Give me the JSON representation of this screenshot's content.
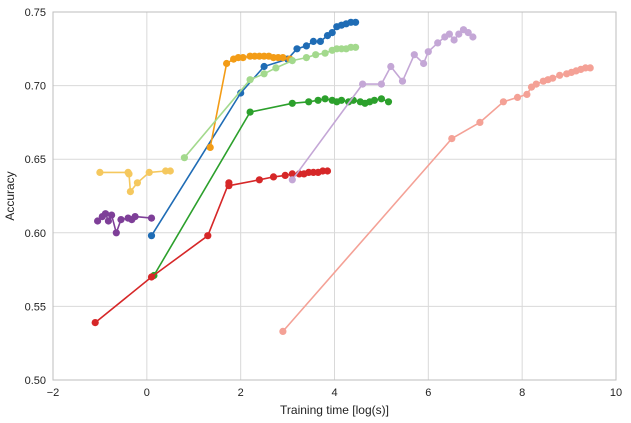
{
  "chart_data": {
    "type": "line",
    "xlabel": "Training time [log(s)]",
    "ylabel": "Accuracy",
    "xlim": [
      -2,
      10
    ],
    "ylim": [
      0.5,
      0.75
    ],
    "xticks": [
      -2,
      0,
      2,
      4,
      6,
      8,
      10
    ],
    "xtick_labels": [
      "−2",
      "0",
      "2",
      "4",
      "6",
      "8",
      "10"
    ],
    "yticks": [
      0.5,
      0.55,
      0.6,
      0.65,
      0.7,
      0.75
    ],
    "ytick_labels": [
      "0.50",
      "0.55",
      "0.60",
      "0.65",
      "0.70",
      "0.75"
    ],
    "grid": true,
    "legend": false,
    "series": [
      {
        "color": "#7e3f98",
        "x": [
          -1.05,
          -0.95,
          -0.88,
          -0.82,
          -0.75,
          -0.65,
          -0.55,
          -0.4,
          -0.32,
          -0.25,
          0.1
        ],
        "y": [
          0.608,
          0.611,
          0.613,
          0.608,
          0.612,
          0.6,
          0.609,
          0.61,
          0.609,
          0.611,
          0.61
        ]
      },
      {
        "color": "#f5c85e",
        "x": [
          -1.0,
          -0.4,
          -0.38,
          -0.35,
          -0.2,
          0.05,
          0.4,
          0.5
        ],
        "y": [
          0.641,
          0.641,
          0.64,
          0.628,
          0.634,
          0.641,
          0.642,
          0.642
        ]
      },
      {
        "color": "#1f6cb5",
        "x": [
          0.1,
          2.0,
          2.5,
          3.0,
          3.2,
          3.4,
          3.55,
          3.7,
          3.85,
          3.95,
          4.05,
          4.15,
          4.25,
          4.35,
          4.45
        ],
        "y": [
          0.598,
          0.695,
          0.713,
          0.718,
          0.725,
          0.727,
          0.73,
          0.73,
          0.734,
          0.736,
          0.74,
          0.741,
          0.742,
          0.743,
          0.743
        ]
      },
      {
        "color": "#f39c16",
        "x": [
          1.35,
          1.7,
          1.85,
          1.95,
          2.05,
          2.2,
          2.3,
          2.4,
          2.5,
          2.6,
          2.7,
          2.8,
          2.9,
          3.05
        ],
        "y": [
          0.658,
          0.715,
          0.718,
          0.719,
          0.719,
          0.72,
          0.72,
          0.72,
          0.72,
          0.72,
          0.719,
          0.719,
          0.719,
          0.718
        ]
      },
      {
        "color": "#a3d98d",
        "x": [
          0.8,
          2.2,
          2.5,
          2.75,
          3.1,
          3.4,
          3.6,
          3.8,
          3.95,
          4.05,
          4.15,
          4.25,
          4.35,
          4.45
        ],
        "y": [
          0.651,
          0.704,
          0.708,
          0.712,
          0.717,
          0.719,
          0.721,
          0.722,
          0.724,
          0.725,
          0.725,
          0.725,
          0.726,
          0.726
        ]
      },
      {
        "color": "#2ca02c",
        "x": [
          0.15,
          2.2,
          3.1,
          3.45,
          3.65,
          3.8,
          3.95,
          4.05,
          4.15,
          4.3,
          4.4,
          4.55,
          4.65,
          4.75,
          4.85,
          5.0,
          5.15
        ],
        "y": [
          0.571,
          0.682,
          0.688,
          0.689,
          0.69,
          0.691,
          0.69,
          0.689,
          0.69,
          0.689,
          0.69,
          0.689,
          0.688,
          0.689,
          0.69,
          0.691,
          0.689
        ]
      },
      {
        "color": "#d62728",
        "x": [
          -1.1,
          0.1,
          1.3,
          1.75,
          1.75,
          2.4,
          2.7,
          2.95,
          3.1,
          3.25,
          3.35,
          3.45,
          3.55,
          3.65,
          3.75,
          3.85
        ],
        "y": [
          0.539,
          0.57,
          0.598,
          0.634,
          0.632,
          0.636,
          0.638,
          0.639,
          0.64,
          0.64,
          0.64,
          0.641,
          0.641,
          0.641,
          0.642,
          0.642
        ]
      },
      {
        "color": "#c4a7d6",
        "x": [
          3.1,
          4.6,
          5.0,
          5.2,
          5.45,
          5.7,
          5.9,
          6.0,
          6.2,
          6.35,
          6.45,
          6.55,
          6.65,
          6.75,
          6.85,
          6.95
        ],
        "y": [
          0.636,
          0.701,
          0.701,
          0.713,
          0.703,
          0.721,
          0.715,
          0.723,
          0.729,
          0.733,
          0.735,
          0.731,
          0.735,
          0.738,
          0.736,
          0.733
        ]
      },
      {
        "color": "#f4a196",
        "x": [
          2.9,
          6.5,
          7.1,
          7.6,
          7.9,
          8.1,
          8.2,
          8.3,
          8.45,
          8.55,
          8.65,
          8.8,
          8.95,
          9.05,
          9.15,
          9.25,
          9.35,
          9.45
        ],
        "y": [
          0.533,
          0.664,
          0.675,
          0.689,
          0.692,
          0.694,
          0.699,
          0.701,
          0.703,
          0.704,
          0.705,
          0.707,
          0.708,
          0.709,
          0.71,
          0.711,
          0.712,
          0.712
        ]
      }
    ]
  }
}
